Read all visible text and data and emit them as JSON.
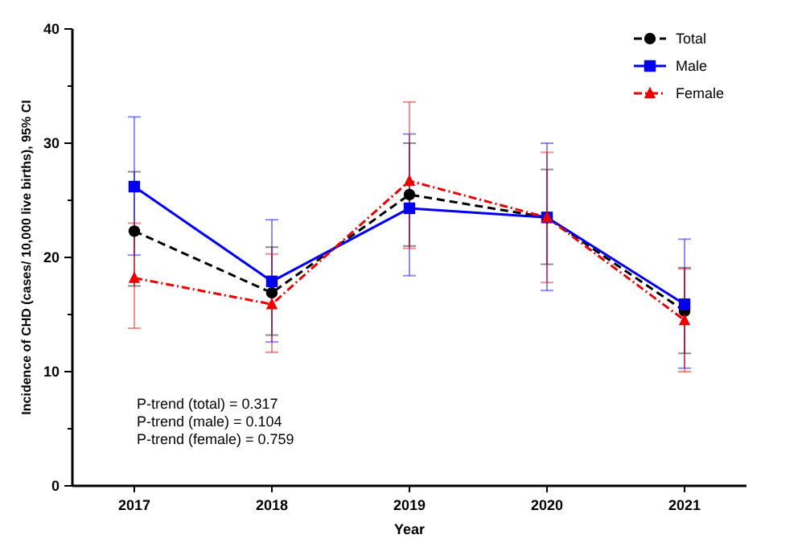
{
  "chart_data": {
    "type": "line",
    "xlabel": "Year",
    "ylabel": "Incidence of CHD (cases/ 10,000 live births), 95% CI",
    "categories": [
      "2017",
      "2018",
      "2019",
      "2020",
      "2021"
    ],
    "ylim": [
      0,
      40
    ],
    "yticks": [
      0,
      {
        "value": 5,
        "label": null
      },
      10,
      {
        "value": 15,
        "label": null
      },
      20,
      {
        "value": 25,
        "label": null
      },
      30,
      {
        "value": 35,
        "label": null
      },
      40
    ],
    "legend": "top right",
    "grid": false,
    "series": [
      {
        "name": "Total",
        "color": "#000000",
        "marker": "circle",
        "line_style": "dashed",
        "values": [
          22.3,
          16.9,
          25.5,
          23.5,
          15.3
        ],
        "errors": [
          [
            17.5,
            27.5
          ],
          [
            13.2,
            20.9
          ],
          [
            21.0,
            30.0
          ],
          [
            19.4,
            27.7
          ],
          [
            11.6,
            19.1
          ]
        ]
      },
      {
        "name": "Male",
        "color": "#0000ee",
        "marker": "square",
        "line_style": "solid",
        "values": [
          26.2,
          17.9,
          24.3,
          23.5,
          15.9
        ],
        "errors": [
          [
            20.2,
            32.3
          ],
          [
            12.6,
            23.3
          ],
          [
            18.4,
            30.8
          ],
          [
            17.1,
            30.0
          ],
          [
            10.3,
            21.6
          ]
        ]
      },
      {
        "name": "Female",
        "color": "#ee0000",
        "marker": "triangle",
        "line_style": "dotted",
        "values": [
          18.2,
          15.9,
          26.7,
          23.5,
          14.5
        ],
        "errors": [
          [
            13.8,
            23.0
          ],
          [
            11.7,
            20.3
          ],
          [
            20.8,
            33.6
          ],
          [
            17.8,
            29.2
          ],
          [
            10.0,
            19.0
          ]
        ]
      }
    ],
    "annotations": [
      "P-trend (total) = 0.317",
      "P-trend (male) = 0.104",
      "P-trend (female) = 0.759"
    ]
  }
}
